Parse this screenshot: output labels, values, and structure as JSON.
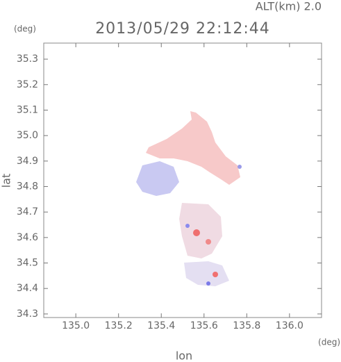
{
  "chart_data": {
    "type": "map",
    "title": "2013/05/29 22:12:44",
    "subtitle": "ALT(km) 2.0",
    "y_unit": "(deg)",
    "x_unit": "(deg)",
    "ylabel": "lat",
    "xlabel": "lon",
    "xlim": [
      134.85,
      136.15
    ],
    "ylim": [
      34.286,
      35.363
    ],
    "xticks": [
      {
        "value": 135,
        "label": "135.0"
      },
      {
        "value": 135.2,
        "label": "135.2"
      },
      {
        "value": 135.4,
        "label": "135.4"
      },
      {
        "value": 135.6,
        "label": "135.6"
      },
      {
        "value": 135.8,
        "label": "135.8"
      },
      {
        "value": 136,
        "label": "136.0"
      }
    ],
    "yticks": [
      34.3,
      34.4,
      34.5,
      34.6,
      34.7,
      34.8,
      34.9,
      {
        "value": 35,
        "label": "35.0"
      },
      35.1,
      35.2,
      35.3
    ]
  }
}
